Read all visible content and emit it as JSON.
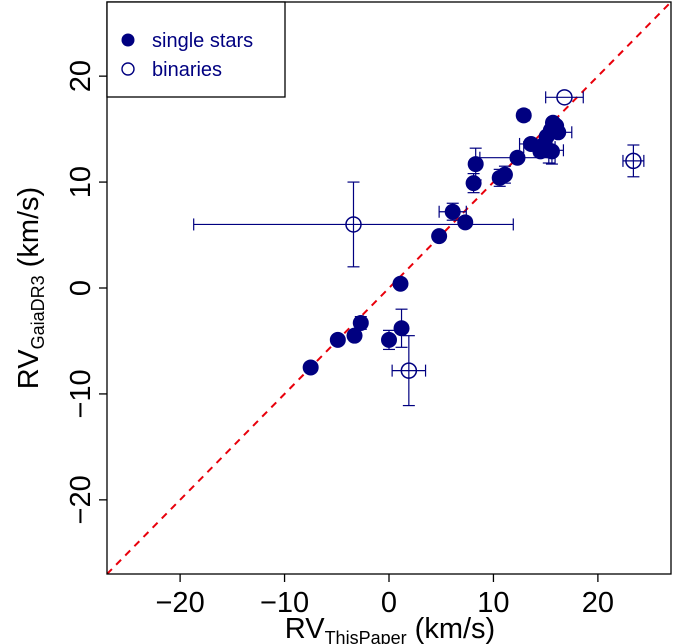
{
  "chart_data": {
    "type": "scatter",
    "xlabel": {
      "main": "RV",
      "sub": "ThisPaper",
      "unit": "(km/s)"
    },
    "ylabel": {
      "main": "RV",
      "sub": "GaiaDR3",
      "unit": "(km/s)"
    },
    "xlim": [
      -27,
      27
    ],
    "ylim": [
      -27,
      27
    ],
    "x_ticks": [
      -20,
      -10,
      0,
      10,
      20
    ],
    "y_ticks": [
      -20,
      -10,
      0,
      10,
      20
    ],
    "x_tick_labels": [
      "−20",
      "−10",
      "0",
      "10",
      "20"
    ],
    "y_tick_labels": [
      "−20",
      "−10",
      "0",
      "10",
      "20"
    ],
    "grid": false,
    "reference_line": {
      "slope": 1,
      "intercept": 0,
      "style": "dashed",
      "color": "#e8000b"
    },
    "marker_color": "#000080",
    "legend": {
      "placement": "top-left",
      "entries": [
        {
          "label": "single stars",
          "marker": "filled-circle"
        },
        {
          "label": "binaries",
          "marker": "open-circle"
        }
      ]
    },
    "series": [
      {
        "name": "single stars",
        "marker": "filled",
        "points": [
          {
            "x": -7.5,
            "y": -7.5
          },
          {
            "x": -4.9,
            "y": -4.9
          },
          {
            "x": -3.3,
            "y": -4.5
          },
          {
            "x": -2.7,
            "y": -3.3,
            "yerr": 0.6
          },
          {
            "x": 0.0,
            "y": -4.9,
            "yerr": 0.9
          },
          {
            "x": 1.2,
            "y": -3.8,
            "yerr": 1.8
          },
          {
            "x": 1.1,
            "y": 0.4
          },
          {
            "x": 4.8,
            "y": 4.9
          },
          {
            "x": 6.1,
            "y": 7.2,
            "xerr": 1.3,
            "yerr": 0.8
          },
          {
            "x": 7.3,
            "y": 6.2
          },
          {
            "x": 8.1,
            "y": 9.9,
            "yerr": 0.9
          },
          {
            "x": 8.3,
            "y": 11.7,
            "yerr": 1.5
          },
          {
            "x": 10.6,
            "y": 10.4,
            "yerr": 0.8
          },
          {
            "x": 11.1,
            "y": 10.7,
            "yerr": 0.8
          },
          {
            "x": 12.3,
            "y": 12.3,
            "xerr": 3.6
          },
          {
            "x": 12.9,
            "y": 16.3,
            "yerr": 0.5
          },
          {
            "x": 13.6,
            "y": 13.6,
            "xerr": 1.1
          },
          {
            "x": 14.4,
            "y": 13.3,
            "xerr": 1.5
          },
          {
            "x": 14.5,
            "y": 12.9
          },
          {
            "x": 14.9,
            "y": 13.6
          },
          {
            "x": 15.1,
            "y": 14.3
          },
          {
            "x": 15.3,
            "y": 13.0,
            "xerr": 1.4,
            "yerr": 1.2
          },
          {
            "x": 15.5,
            "y": 14.9
          },
          {
            "x": 15.7,
            "y": 15.6
          },
          {
            "x": 15.6,
            "y": 12.9,
            "yerr": 1.2
          },
          {
            "x": 16.0,
            "y": 15.3
          },
          {
            "x": 16.2,
            "y": 14.7,
            "xerr": 1.3
          }
        ]
      },
      {
        "name": "binaries",
        "marker": "open",
        "points": [
          {
            "x": -3.4,
            "y": 6.0,
            "xerr": 15.3,
            "yerr": 4.0
          },
          {
            "x": 1.9,
            "y": -7.8,
            "xerr": 1.6,
            "yerr": 3.3
          },
          {
            "x": 16.8,
            "y": 18.0,
            "xerr": 1.8
          },
          {
            "x": 23.4,
            "y": 12.0,
            "xerr": 1.0,
            "yerr": 1.5
          }
        ]
      }
    ]
  }
}
